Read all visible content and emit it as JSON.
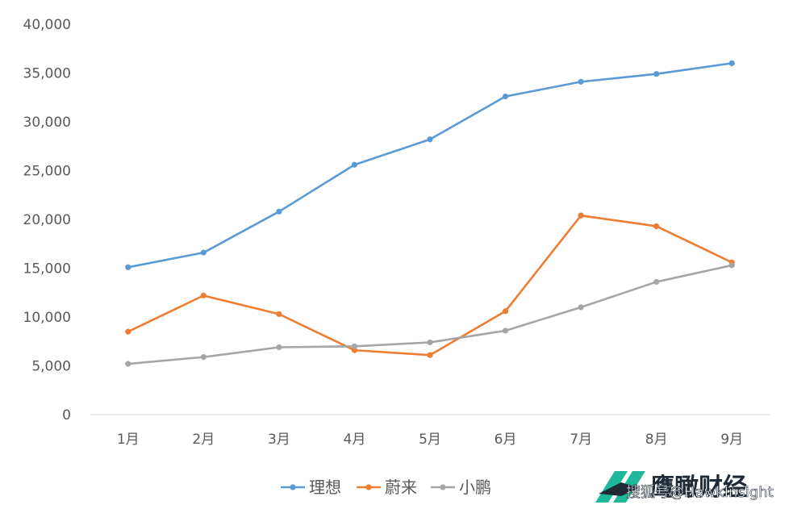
{
  "chart_data": {
    "type": "line",
    "title": "",
    "xlabel": "",
    "ylabel": "",
    "categories": [
      "1月",
      "2月",
      "3月",
      "4月",
      "5月",
      "6月",
      "7月",
      "8月",
      "9月"
    ],
    "ylim": [
      0,
      40000
    ],
    "yticks": [
      0,
      5000,
      10000,
      15000,
      20000,
      25000,
      30000,
      35000,
      40000
    ],
    "ytick_labels": [
      "0",
      "5,000",
      "10,000",
      "15,000",
      "20,000",
      "25,000",
      "30,000",
      "35,000",
      "40,000"
    ],
    "grid": false,
    "legend_position": "bottom",
    "series": [
      {
        "name": "理想",
        "color": "#5b9bd5",
        "values": [
          15100,
          16600,
          20800,
          25600,
          28200,
          32600,
          34100,
          34900,
          36000
        ]
      },
      {
        "name": "蔚来",
        "color": "#ed7d31",
        "values": [
          8500,
          12200,
          10300,
          6600,
          6100,
          10600,
          20400,
          19300,
          15600
        ]
      },
      {
        "name": "小鹏",
        "color": "#a5a5a5",
        "values": [
          5200,
          5900,
          6900,
          7000,
          7400,
          8600,
          11000,
          13600,
          15300
        ]
      }
    ]
  },
  "watermark": {
    "brand": "鹰瞰财经",
    "caption": "搜狐号@HawkInsight",
    "logo_color": "#1fb89c"
  }
}
